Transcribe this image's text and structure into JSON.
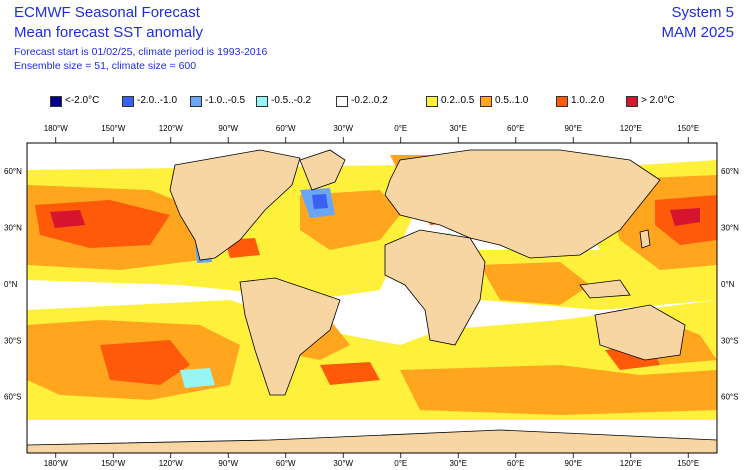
{
  "header": {
    "title_line1": "ECMWF Seasonal Forecast",
    "title_line2": "Mean forecast SST anomaly",
    "forecast_info": "Forecast start is 01/02/25, climate period is 1993-2016",
    "ensemble_info": "Ensemble size = 51, climate size = 600",
    "system": "System 5",
    "season": "MAM 2025"
  },
  "legend": [
    {
      "label": "<-2.0°C",
      "color": "#00008c"
    },
    {
      "label": "-2.0..-1.0",
      "color": "#3c5ff5"
    },
    {
      "label": "-1.0..-0.5",
      "color": "#6aa6f5"
    },
    {
      "label": "-0.5..-0.2",
      "color": "#96f5f5"
    },
    {
      "label": "-0.2..0.2",
      "color": "#ffffff"
    },
    {
      "label": "0.2..0.5",
      "color": "#fff03c"
    },
    {
      "label": "0.5..1.0",
      "color": "#ffa51e"
    },
    {
      "label": "1.0..2.0",
      "color": "#ff5a0a"
    },
    {
      "label": "> 2.0°C",
      "color": "#d7142d"
    }
  ],
  "axes": {
    "lon_labels": [
      "180°W",
      "150°W",
      "120°W",
      "90°W",
      "60°W",
      "30°W",
      "0°E",
      "30°E",
      "60°E",
      "90°E",
      "120°E",
      "150°E"
    ],
    "lat_labels": [
      "60°N",
      "30°N",
      "0°N",
      "30°S",
      "60°S"
    ]
  },
  "colors": {
    "land": "#f7d6a4",
    "coast": "#000000",
    "frame": "#000000"
  }
}
